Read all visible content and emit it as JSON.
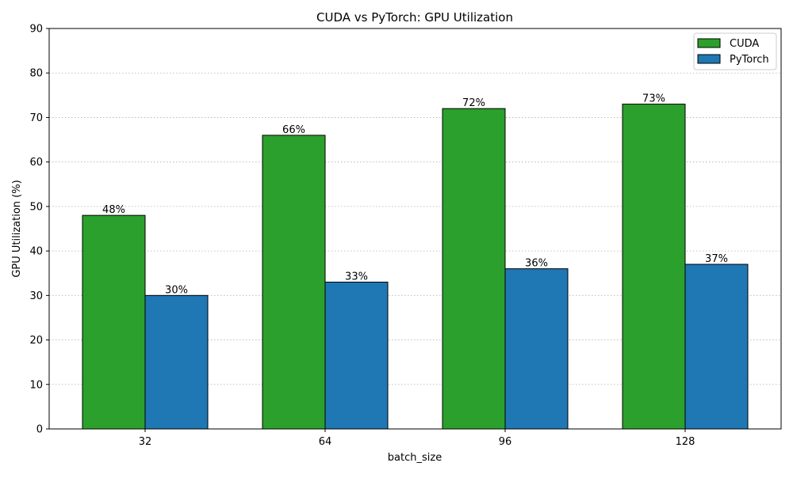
{
  "chart_data": {
    "type": "bar",
    "title": "CUDA vs PyTorch: GPU Utilization",
    "xlabel": "batch_size",
    "ylabel": "GPU Utilization (%)",
    "categories": [
      "32",
      "64",
      "96",
      "128"
    ],
    "ylim": [
      0,
      90
    ],
    "yticks": [
      0,
      10,
      20,
      30,
      40,
      50,
      60,
      70,
      80,
      90
    ],
    "grid": "y-dotted",
    "legend_position": "top-right",
    "series": [
      {
        "name": "CUDA",
        "color": "#2ca02c",
        "values": [
          48,
          66,
          72,
          73
        ],
        "labels": [
          "48%",
          "66%",
          "72%",
          "73%"
        ]
      },
      {
        "name": "PyTorch",
        "color": "#1f77b4",
        "values": [
          30,
          33,
          36,
          37
        ],
        "labels": [
          "30%",
          "33%",
          "36%",
          "37%"
        ]
      }
    ]
  }
}
